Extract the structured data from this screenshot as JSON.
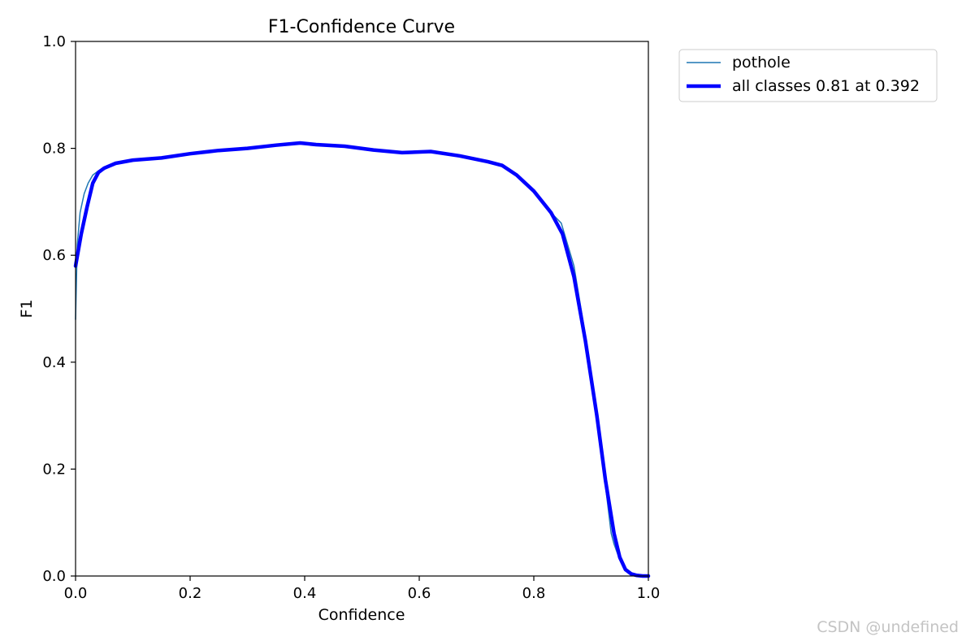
{
  "chart_data": {
    "type": "line",
    "title": "F1-Confidence Curve",
    "xlabel": "Confidence",
    "ylabel": "F1",
    "xlim": [
      0.0,
      1.0
    ],
    "ylim": [
      0.0,
      1.0
    ],
    "xticks": [
      "0.0",
      "0.2",
      "0.4",
      "0.6",
      "0.8",
      "1.0"
    ],
    "yticks": [
      "0.0",
      "0.2",
      "0.4",
      "0.6",
      "0.8",
      "1.0"
    ],
    "grid": false,
    "legend_position": "outside-top-right",
    "series": [
      {
        "name": "pothole",
        "color": "#1f77b4",
        "line": "thin",
        "x": [
          0.0,
          0.003,
          0.008,
          0.015,
          0.022,
          0.03,
          0.04,
          0.05,
          0.07,
          0.1,
          0.15,
          0.2,
          0.25,
          0.3,
          0.35,
          0.392,
          0.42,
          0.47,
          0.52,
          0.57,
          0.62,
          0.67,
          0.72,
          0.745,
          0.77,
          0.8,
          0.83,
          0.848,
          0.87,
          0.89,
          0.91,
          0.925,
          0.935,
          0.94,
          0.95,
          0.96,
          0.97,
          0.98,
          0.99,
          1.0
        ],
        "y": [
          0.48,
          0.62,
          0.68,
          0.715,
          0.735,
          0.75,
          0.758,
          0.765,
          0.772,
          0.778,
          0.782,
          0.79,
          0.796,
          0.8,
          0.806,
          0.81,
          0.807,
          0.804,
          0.797,
          0.792,
          0.794,
          0.786,
          0.775,
          0.77,
          0.75,
          0.72,
          0.68,
          0.66,
          0.58,
          0.45,
          0.3,
          0.17,
          0.08,
          0.06,
          0.03,
          0.01,
          0.004,
          0.002,
          0.001,
          0.0
        ]
      },
      {
        "name": "all classes 0.81 at 0.392",
        "color": "#0000ff",
        "line": "thick",
        "x": [
          0.0,
          0.01,
          0.02,
          0.03,
          0.04,
          0.05,
          0.07,
          0.1,
          0.15,
          0.2,
          0.25,
          0.3,
          0.35,
          0.392,
          0.42,
          0.47,
          0.52,
          0.57,
          0.62,
          0.67,
          0.72,
          0.745,
          0.77,
          0.8,
          0.83,
          0.85,
          0.87,
          0.89,
          0.91,
          0.925,
          0.94,
          0.95,
          0.96,
          0.97,
          0.98,
          0.99,
          1.0
        ],
        "y": [
          0.58,
          0.64,
          0.69,
          0.735,
          0.755,
          0.763,
          0.772,
          0.778,
          0.782,
          0.79,
          0.796,
          0.8,
          0.806,
          0.81,
          0.807,
          0.804,
          0.797,
          0.792,
          0.794,
          0.786,
          0.775,
          0.768,
          0.75,
          0.72,
          0.68,
          0.64,
          0.56,
          0.44,
          0.3,
          0.18,
          0.08,
          0.035,
          0.012,
          0.004,
          0.001,
          0.0,
          0.0
        ]
      }
    ]
  },
  "watermark": "CSDN @undefined"
}
